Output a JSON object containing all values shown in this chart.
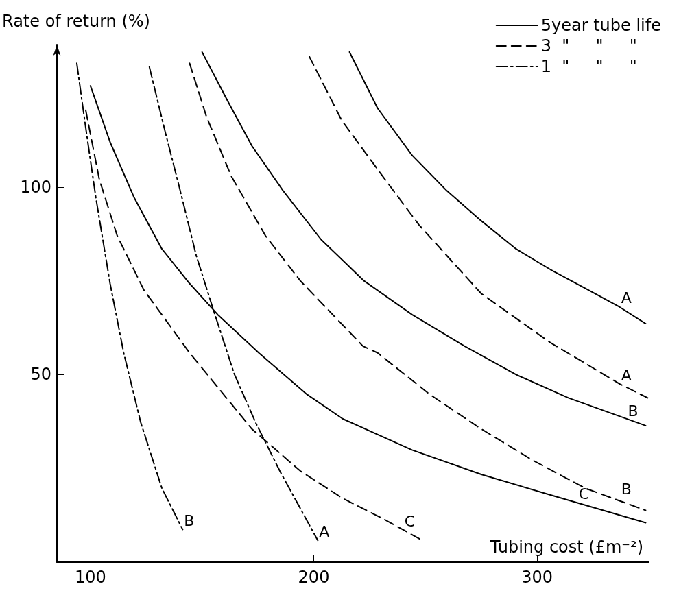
{
  "chart_data": {
    "type": "line",
    "xlabel": "Tubing cost (£m⁻²)",
    "ylabel": "Rate of return (%)",
    "xlim": [
      85,
      350
    ],
    "xticks": [
      100,
      200,
      300
    ],
    "ylim": [
      0,
      138
    ],
    "yticks": [
      50,
      100
    ],
    "grid": false,
    "marker": "none",
    "legend": "top right",
    "annotations": [
      {
        "text": "A",
        "x": 337,
        "y": 68
      },
      {
        "text": "A",
        "x": 337,
        "y": 47.5
      },
      {
        "text": "B",
        "x": 340,
        "y": 38
      },
      {
        "text": "B",
        "x": 337,
        "y": 17
      },
      {
        "text": "C",
        "x": 318,
        "y": 15.8
      },
      {
        "text": "C",
        "x": 240,
        "y": 8.5
      },
      {
        "text": "B",
        "x": 141.3,
        "y": 8.7
      },
      {
        "text": "A",
        "x": 201.8,
        "y": 5.8
      }
    ],
    "series": [
      {
        "name": "5year tube life",
        "color": "#000000",
        "line_style": "solid",
        "x": [
          216,
          228.6,
          244,
          259.6,
          275,
          290.6,
          306,
          321.6,
          337,
          348.6
        ],
        "values": [
          136,
          121,
          108.5,
          99,
          91,
          83.5,
          78,
          73,
          68,
          63.6
        ]
      },
      {
        "color": "#000000",
        "line_style": "solid",
        "x": [
          150,
          161.4,
          172.3,
          186.3,
          203.3,
          222.5,
          244,
          267.5,
          290.6,
          314,
          348.6
        ],
        "values": [
          136,
          123,
          111,
          99,
          86,
          75,
          66,
          57.6,
          50,
          43.8,
          36.4
        ]
      },
      {
        "color": "#000000",
        "line_style": "solid",
        "x": [
          100,
          108.8,
          119.5,
          132,
          144.4,
          157,
          175.4,
          197,
          213,
          244,
          275,
          306,
          348.6
        ],
        "values": [
          127,
          112,
          97.3,
          83.5,
          74.3,
          66,
          55.8,
          44.7,
          38.2,
          29.9,
          23.4,
          17.9,
          10.5
        ]
      },
      {
        "name": "3  \"     \"     \"",
        "color": "#000000",
        "line_style": "dashed",
        "x": [
          198,
          206.4,
          212.5,
          228.6,
          247,
          259.6,
          275,
          290.6,
          306,
          321.6,
          337,
          349.5
        ],
        "values": [
          134.8,
          125,
          117.8,
          104.7,
          90,
          81.7,
          71.6,
          65,
          58.5,
          53,
          47.5,
          43.8
        ]
      },
      {
        "color": "#000000",
        "line_style": "dashed",
        "x": [
          144.4,
          152,
          163,
          178.4,
          194,
          222,
          228.6,
          252,
          275,
          298.5,
          321.6,
          348.6
        ],
        "values": [
          133,
          118.7,
          103,
          87,
          75,
          57.6,
          55.8,
          44.7,
          35.5,
          27,
          19.7,
          13.8
        ]
      },
      {
        "color": "#000000",
        "line_style": "dashed",
        "x": [
          97.9,
          104,
          112,
          124,
          144.4,
          172.3,
          194,
          213,
          231.6,
          248.6
        ],
        "values": [
          120.5,
          102,
          87,
          72.5,
          55.8,
          35.5,
          24.3,
          17,
          11.4,
          5.8
        ]
      },
      {
        "name": "1  \"     \"     \"",
        "color": "#000000",
        "line_style": "dashdot",
        "x": [
          93.9,
          97.9,
          102.4,
          108.8,
          114.9,
          122.5,
          132,
          141.3
        ],
        "values": [
          133,
          115.8,
          97.3,
          74.3,
          55.8,
          37.3,
          19.7,
          8.7
        ]
      },
      {
        "color": "#000000",
        "line_style": "dashdot",
        "x": [
          126.4,
          133.4,
          139.8,
          147.4,
          155.3,
          164.4,
          173.9,
          184.8,
          201.8
        ],
        "values": [
          132,
          114.9,
          100,
          81.7,
          66.8,
          50.2,
          37.3,
          24.3,
          5.8
        ]
      }
    ]
  }
}
